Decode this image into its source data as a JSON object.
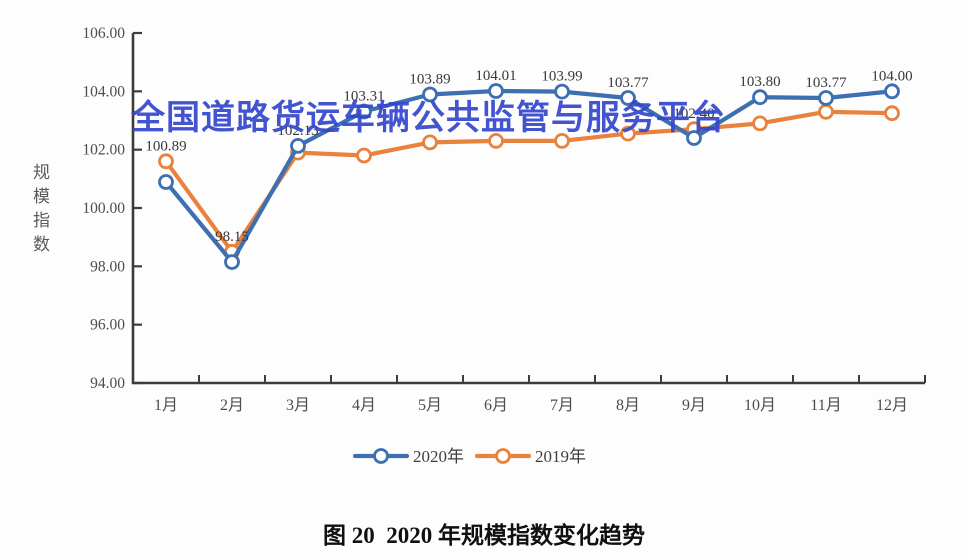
{
  "watermark": "全国道路货运车辆公共监管与服务平台",
  "caption": "图 20  2020 年规模指数变化趋势",
  "chart_data": {
    "type": "line",
    "title": "",
    "xlabel": "",
    "ylabel": "规模指数",
    "ylim": [
      94,
      106
    ],
    "y_ticks": [
      "106.00",
      "104.00",
      "102.00",
      "100.00",
      "98.00",
      "96.00",
      "94.00"
    ],
    "grid": false,
    "legend_position": "bottom",
    "categories": [
      "1月",
      "2月",
      "3月",
      "4月",
      "5月",
      "6月",
      "7月",
      "8月",
      "9月",
      "10月",
      "11月",
      "12月"
    ],
    "series": [
      {
        "name": "2020年",
        "color": "#3d6fb1",
        "values": [
          100.89,
          98.15,
          102.13,
          103.31,
          103.89,
          104.01,
          103.99,
          103.77,
          102.4,
          103.8,
          103.77,
          104.0
        ],
        "labels": [
          "100.89",
          "98.15",
          "102.13",
          "103.31",
          "103.89",
          "104.01",
          "103.99",
          "103.77",
          "102.40",
          "103.80",
          "103.77",
          "104.00"
        ]
      },
      {
        "name": "2019年",
        "color": "#e8823c",
        "values": [
          101.6,
          98.5,
          101.9,
          101.8,
          102.25,
          102.3,
          102.3,
          102.55,
          102.7,
          102.9,
          103.3,
          103.25
        ],
        "labels": []
      }
    ],
    "colors": {
      "axis": "#3c3c3c",
      "tick_label": "#4d4d4d",
      "data_label": "#383838",
      "watermark": "#3346cc"
    }
  }
}
